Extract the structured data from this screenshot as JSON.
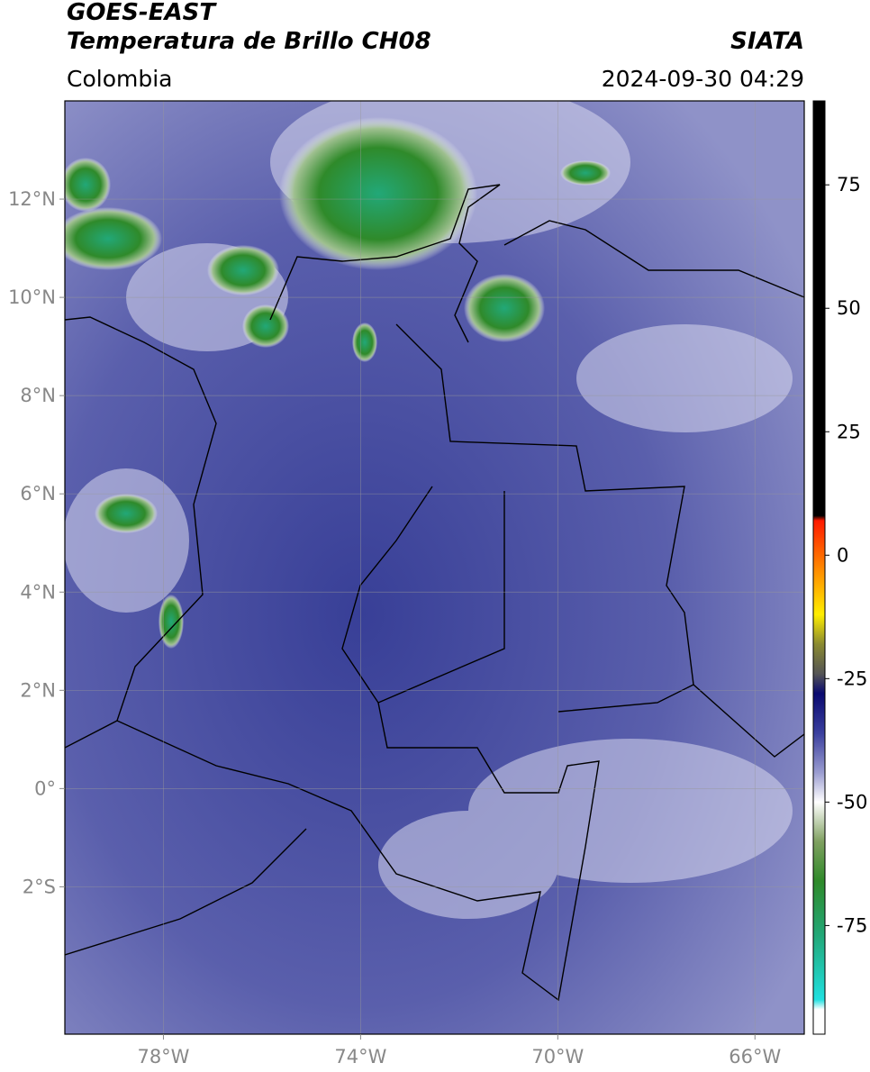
{
  "map": {
    "title": "GOES-EAST",
    "subtitle": "Temperatura de Brillo CH08",
    "source": "SIATA",
    "region": "Colombia",
    "datetime": "2024-09-30 04:29",
    "xlim": [
      -80,
      -65
    ],
    "ylim": [
      -5,
      14
    ],
    "xticks": [
      {
        "value": -78,
        "label": "78°W"
      },
      {
        "value": -74,
        "label": "74°W"
      },
      {
        "value": -70,
        "label": "70°W"
      },
      {
        "value": -66,
        "label": "66°W"
      }
    ],
    "yticks": [
      {
        "value": 12,
        "label": "12°N"
      },
      {
        "value": 10,
        "label": "10°N"
      },
      {
        "value": 8,
        "label": "8°N"
      },
      {
        "value": 6,
        "label": "6°N"
      },
      {
        "value": 4,
        "label": "4°N"
      },
      {
        "value": 2,
        "label": "2°N"
      },
      {
        "value": 0,
        "label": "0°"
      },
      {
        "value": -2,
        "label": "2°S"
      }
    ],
    "grid": true,
    "colorbar": {
      "lim": [
        -97,
        92
      ],
      "ticks": [
        75,
        50,
        25,
        0,
        -25,
        -50,
        -75
      ],
      "stops": [
        {
          "value": 92,
          "color": "#000000"
        },
        {
          "value": 8,
          "color": "#000000"
        },
        {
          "value": 7,
          "color": "#ff1a00"
        },
        {
          "value": -3,
          "color": "#ff8c00"
        },
        {
          "value": -12,
          "color": "#ffee00"
        },
        {
          "value": -18,
          "color": "#8a8a30"
        },
        {
          "value": -24,
          "color": "#555555"
        },
        {
          "value": -28,
          "color": "#0a0a70"
        },
        {
          "value": -36,
          "color": "#3a3f9e"
        },
        {
          "value": -44,
          "color": "#9a9cd0"
        },
        {
          "value": -50,
          "color": "#ffffff"
        },
        {
          "value": -58,
          "color": "#7fa060"
        },
        {
          "value": -66,
          "color": "#2f8a2a"
        },
        {
          "value": -77,
          "color": "#22a878"
        },
        {
          "value": -90,
          "color": "#20e0e0"
        },
        {
          "value": -92,
          "color": "#ffffff"
        },
        {
          "value": -97,
          "color": "#ffffff"
        }
      ]
    }
  }
}
